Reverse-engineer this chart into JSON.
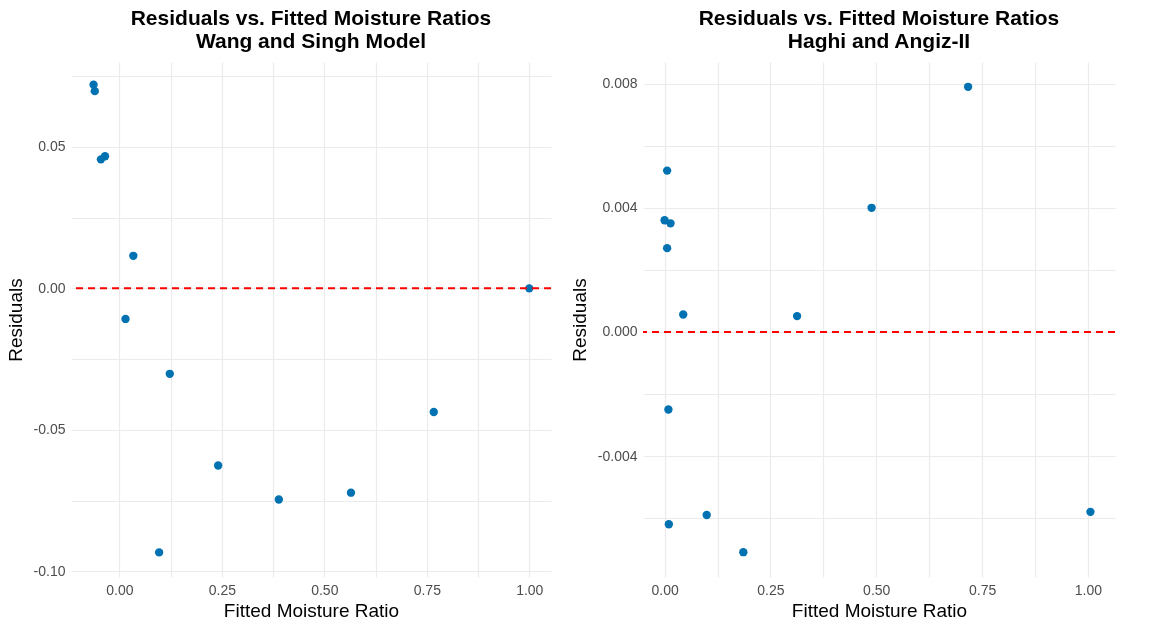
{
  "chart_data": [
    {
      "type": "scatter",
      "title": "Residuals vs. Fitted Moisture Ratios",
      "subtitle": "Wang and Singh Model",
      "xlabel": "Fitted Moisture Ratio",
      "ylabel": "Residuals",
      "marker": "circle",
      "grid": true,
      "x": [
        -0.063,
        -0.06,
        -0.045,
        -0.035,
        0.034,
        1.0,
        0.015,
        0.123,
        0.097,
        0.241,
        0.389,
        0.565,
        0.767
      ],
      "series": [
        {
          "color": "#0072b2",
          "values": [
            0.072,
            0.0697,
            0.0456,
            0.0467,
            0.0115,
            0.0,
            -0.0108,
            -0.0302,
            -0.0933,
            -0.0626,
            -0.0746,
            -0.0722,
            -0.0437
          ]
        }
      ],
      "ref_lines": [
        {
          "axis": "y",
          "value": 0,
          "color": "#ff0000",
          "line_style": "dashed"
        }
      ],
      "xlim": [
        -0.118,
        1.053
      ],
      "ylim": [
        -0.102,
        0.08
      ],
      "xticks": [
        {
          "value": 0,
          "label": "0.00"
        },
        {
          "value": 0.125,
          "label": null
        },
        {
          "value": 0.25,
          "label": "0.25"
        },
        {
          "value": 0.375,
          "label": null
        },
        {
          "value": 0.5,
          "label": "0.50"
        },
        {
          "value": 0.625,
          "label": null
        },
        {
          "value": 0.75,
          "label": "0.75"
        },
        {
          "value": 0.875,
          "label": null
        },
        {
          "value": 1,
          "label": "1.00"
        }
      ],
      "yticks": [
        {
          "value": -0.1,
          "label": "-0.10"
        },
        {
          "value": -0.075,
          "label": null
        },
        {
          "value": -0.05,
          "label": "-0.05"
        },
        {
          "value": -0.025,
          "label": null
        },
        {
          "value": 0,
          "label": "0.00"
        },
        {
          "value": 0.025,
          "label": null
        },
        {
          "value": 0.05,
          "label": "0.05"
        },
        {
          "value": 0.075,
          "label": null
        }
      ]
    },
    {
      "type": "scatter",
      "title": "Residuals vs. Fitted Moisture Ratios",
      "subtitle": "Haghi and Angiz-II",
      "xlabel": "Fitted Moisture Ratio",
      "ylabel": "Residuals",
      "marker": "circle",
      "grid": true,
      "x": [
        0.717,
        0.006,
        0.489,
        0.0,
        0.014,
        0.006,
        0.044,
        0.313,
        0.009,
        0.01,
        0.0995,
        0.186,
        1.006
      ],
      "series": [
        {
          "color": "#0072b2",
          "values": [
            0.0079,
            0.0052,
            0.004,
            0.0036,
            0.0035,
            0.0027,
            0.00056,
            0.00051,
            -0.0025,
            -0.0062,
            -0.0059,
            -0.0071,
            -0.0058
          ]
        }
      ],
      "ref_lines": [
        {
          "axis": "y",
          "value": 0,
          "color": "#ff0000",
          "line_style": "dashed"
        }
      ],
      "xlim": [
        -0.051,
        1.064
      ],
      "ylim": [
        -0.0079,
        0.0087
      ],
      "xticks": [
        {
          "value": 0,
          "label": "0.00"
        },
        {
          "value": 0.125,
          "label": null
        },
        {
          "value": 0.25,
          "label": "0.25"
        },
        {
          "value": 0.375,
          "label": null
        },
        {
          "value": 0.5,
          "label": "0.50"
        },
        {
          "value": 0.625,
          "label": null
        },
        {
          "value": 0.75,
          "label": "0.75"
        },
        {
          "value": 0.875,
          "label": null
        },
        {
          "value": 1,
          "label": "1.00"
        }
      ],
      "yticks": [
        {
          "value": -0.006,
          "label": null
        },
        {
          "value": -0.004,
          "label": "-0.004"
        },
        {
          "value": -0.002,
          "label": null
        },
        {
          "value": 0,
          "label": "0.000"
        },
        {
          "value": 0.002,
          "label": null
        },
        {
          "value": 0.004,
          "label": "0.004"
        },
        {
          "value": 0.006,
          "label": null
        },
        {
          "value": 0.008,
          "label": "0.008"
        }
      ]
    }
  ]
}
